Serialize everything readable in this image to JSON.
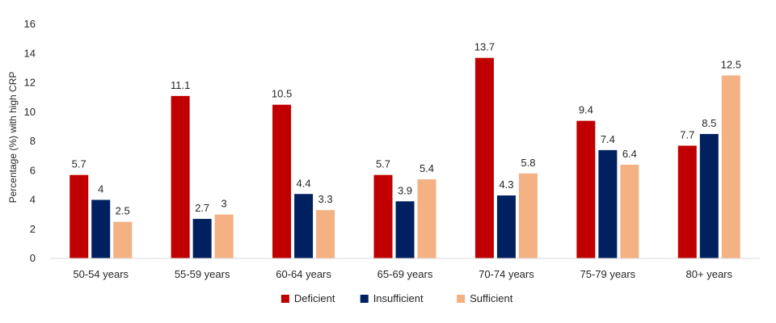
{
  "chart_data": {
    "type": "bar",
    "ylabel": "Percentage (%) with high CRP",
    "xlabel": "",
    "ylim": [
      0,
      16
    ],
    "yticks": [
      0,
      2,
      4,
      6,
      8,
      10,
      12,
      14,
      16
    ],
    "grid": false,
    "legend_position": "bottom",
    "categories": [
      "50-54 years",
      "55-59 years",
      "60-64 years",
      "65-69 years",
      "70-74 years",
      "75-79 years",
      "80+ years"
    ],
    "series": [
      {
        "name": "Deficient",
        "color": "#C00000",
        "values": [
          5.7,
          11.1,
          10.5,
          5.7,
          13.7,
          9.4,
          7.7
        ]
      },
      {
        "name": "Insufficient",
        "color": "#002060",
        "values": [
          4,
          2.7,
          4.4,
          3.9,
          4.3,
          7.4,
          8.5
        ]
      },
      {
        "name": "Sufficient",
        "color": "#F4B183",
        "values": [
          2.5,
          3,
          3.3,
          5.4,
          5.8,
          6.4,
          12.5
        ]
      }
    ]
  }
}
